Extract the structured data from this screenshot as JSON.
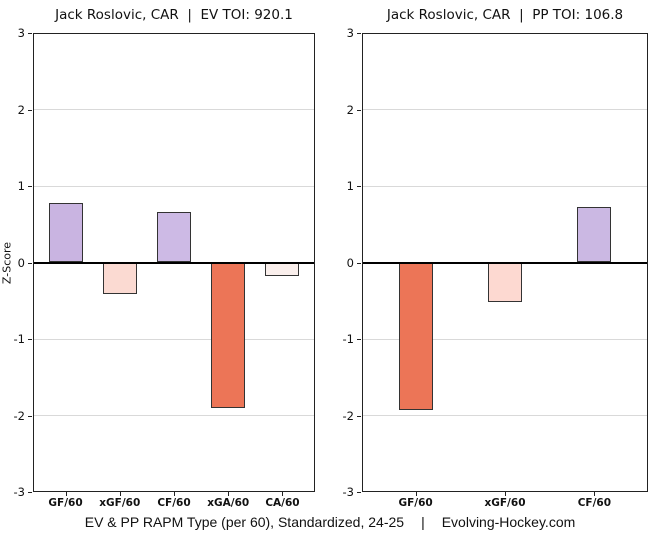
{
  "figure": {
    "background": "#ffffff",
    "caption": {
      "left": "EV & PP RAPM Type (per 60), Standardized, 24-25",
      "separator": "|",
      "right": "Evolving-Hockey.com"
    }
  },
  "style": {
    "grid_color": "#d9d9d9",
    "zero_line_color": "#000000",
    "panel_border_color": "#222222",
    "bar_edge_color": "#333333",
    "text_color": "#1a1a1a"
  },
  "chart_data": [
    {
      "type": "bar",
      "title": "Jack Roslovic, CAR  |  EV TOI: 920.1",
      "player": "Jack Roslovic",
      "team": "CAR",
      "strength": "EV",
      "toi": 920.1,
      "xlabel": "",
      "ylabel": "Z-Score",
      "ylim": [
        -3,
        3
      ],
      "yticks": [
        3,
        2,
        1,
        0,
        -1,
        -2,
        -3
      ],
      "gridlines": [
        2,
        1,
        -1,
        -2
      ],
      "grid": "horizontal major only",
      "legend": "none",
      "categories": [
        "GF/60",
        "xGF/60",
        "CF/60",
        "xGA/60",
        "CA/60"
      ],
      "values": [
        0.78,
        -0.41,
        0.66,
        -1.9,
        -0.18
      ],
      "bar_colors": [
        "#c9b4e1",
        "#fbdad2",
        "#cdbae5",
        "#ec7557",
        "#faefec"
      ]
    },
    {
      "type": "bar",
      "title": "Jack Roslovic, CAR  |  PP TOI: 106.8",
      "player": "Jack Roslovic",
      "team": "CAR",
      "strength": "PP",
      "toi": 106.8,
      "xlabel": "",
      "ylabel": "",
      "ylim": [
        -3,
        3
      ],
      "yticks": [
        3,
        2,
        1,
        0,
        -1,
        -2,
        -3
      ],
      "gridlines": [
        2,
        1,
        -1,
        -2
      ],
      "grid": "horizontal major only",
      "legend": "none",
      "categories": [
        "GF/60",
        "xGF/60",
        "CF/60"
      ],
      "values": [
        -1.93,
        -0.52,
        0.73
      ],
      "bar_colors": [
        "#ec7557",
        "#fdd9d1",
        "#cbb8e3"
      ]
    }
  ]
}
